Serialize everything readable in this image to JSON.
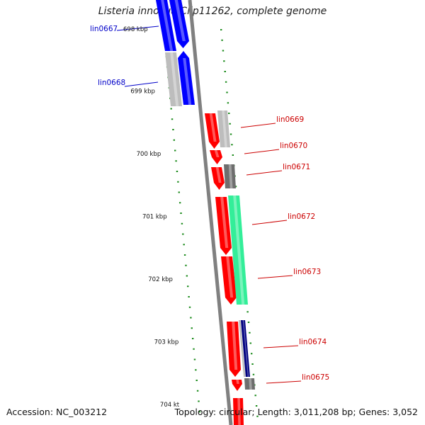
{
  "title": "Listeria innocua Clip11262, complete genome",
  "footer": {
    "accession": "Accession: NC_003212",
    "stats": "Topology: circular; Length: 3,011,208 bp; Genes: 3,052"
  },
  "colors": {
    "background": "#ffffff",
    "backbone": "#808080",
    "tick": "#1a8a1a",
    "label_left": "#0000c8",
    "label_right": "#cc0000",
    "gene_blue": "#0000ff",
    "gene_red": "#ff0000",
    "gene_lightgray": "#bdbdbd",
    "gene_darkgray": "#6e6e6e",
    "gene_green": "#33ee99",
    "gene_navy": "#000080"
  },
  "map": {
    "position_labels": [
      {
        "kbp": 698,
        "text": "698 kbp"
      },
      {
        "kbp": 699,
        "text": "699 kbp"
      },
      {
        "kbp": 700,
        "text": "700 kbp"
      },
      {
        "kbp": 701,
        "text": "701 kbp"
      },
      {
        "kbp": 702,
        "text": "702 kbp"
      },
      {
        "kbp": 703,
        "text": "703 kbp"
      },
      {
        "kbp": 704,
        "text": "704 kt"
      }
    ],
    "genes": [
      {
        "label": "lin0667",
        "side": "left",
        "color": "blue"
      },
      {
        "label": "lin0668",
        "side": "left",
        "color": "blue"
      },
      {
        "label": "lin0669",
        "side": "right",
        "color": "red"
      },
      {
        "label": "lin0670",
        "side": "right",
        "color": "red"
      },
      {
        "label": "lin0671",
        "side": "right",
        "color": "red"
      },
      {
        "label": "lin0672",
        "side": "right",
        "color": "red"
      },
      {
        "label": "lin0673",
        "side": "right",
        "color": "red"
      },
      {
        "label": "lin0674",
        "side": "right",
        "color": "red"
      },
      {
        "label": "lin0675",
        "side": "right",
        "color": "red"
      }
    ]
  }
}
